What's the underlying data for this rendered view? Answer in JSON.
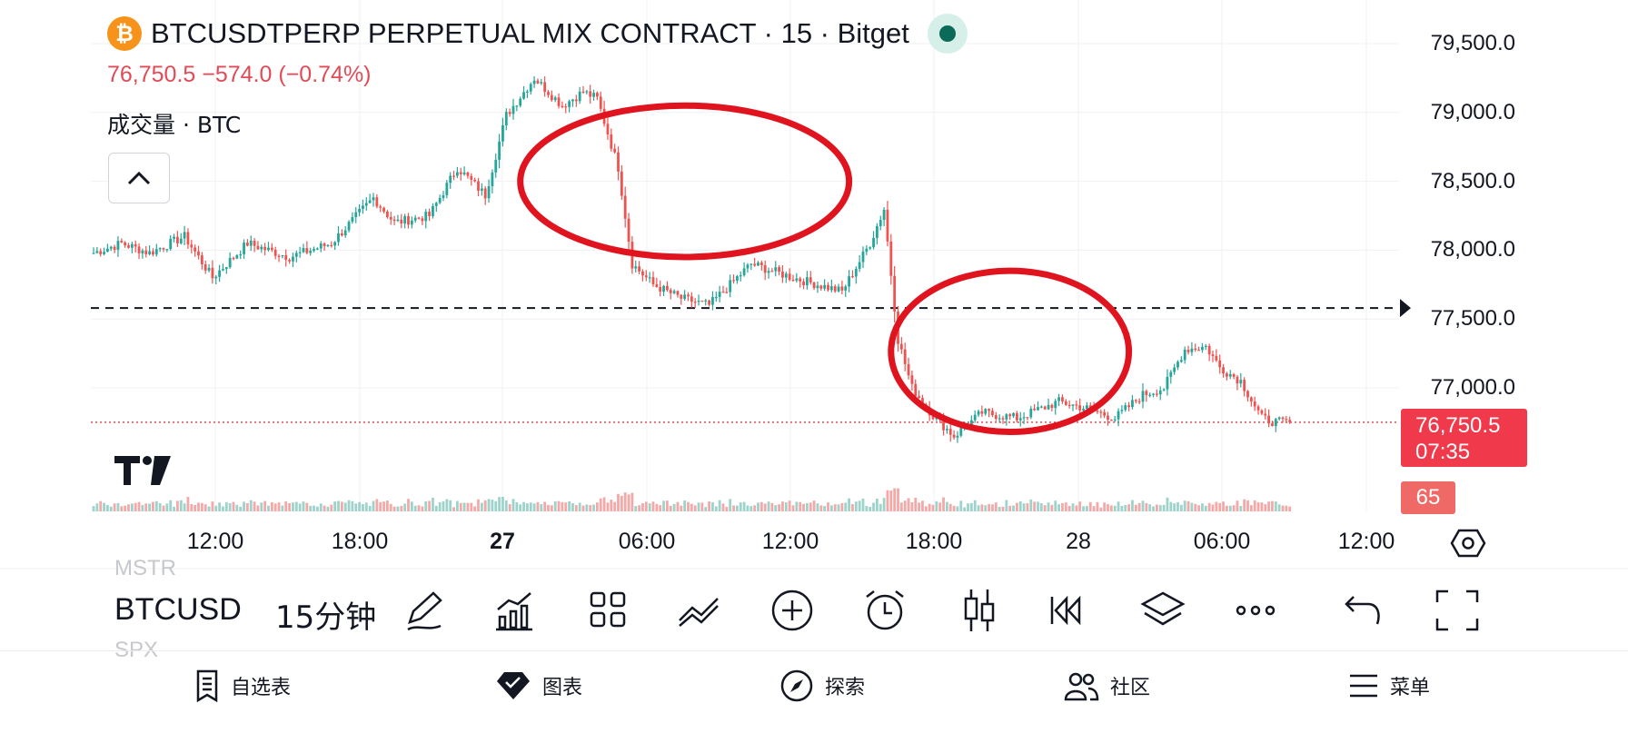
{
  "header": {
    "coin_icon": "bitcoin-icon",
    "coin_glyph": "₿",
    "title": "BTCUSDTPERP PERPETUAL MIX CONTRACT · 15 · Bitget",
    "price_change": "76,750.5  −574.0 (−0.74%)",
    "volume_label": "成交量 · BTC",
    "market_status_color": "#0b6b58"
  },
  "price_axis": {
    "ticks": [
      "79,500.0",
      "79,000.0",
      "78,500.0",
      "78,000.0",
      "77,500.0",
      "77,000.0"
    ],
    "current_price": "76,750.5",
    "countdown": "07:35",
    "volume_value": "65"
  },
  "time_axis": {
    "ticks": [
      "12:00",
      "18:00",
      "27",
      "06:00",
      "12:00",
      "18:00",
      "28",
      "06:00",
      "12:00"
    ],
    "bold": [
      "27"
    ]
  },
  "ghost_symbols": [
    "MSTR",
    "SPX"
  ],
  "toolbar": {
    "symbol": "BTCUSD",
    "timeframe": "15分钟",
    "icons": [
      "pen-icon",
      "indicators-icon",
      "layout-grid-icon",
      "compare-icon",
      "add-circle-icon",
      "alarm-icon",
      "candle-style-icon",
      "replay-icon",
      "layers-icon",
      "more-icon",
      "undo-icon",
      "fullscreen-icon"
    ]
  },
  "bottom_nav": [
    {
      "label": "自选表",
      "icon": "watchlist-icon"
    },
    {
      "label": "图表",
      "icon": "chart-icon"
    },
    {
      "label": "探索",
      "icon": "compass-icon"
    },
    {
      "label": "社区",
      "icon": "community-icon"
    },
    {
      "label": "菜单",
      "icon": "menu-icon"
    }
  ],
  "colors": {
    "up": "#26a69a",
    "down": "#ef5350",
    "up_volume": "#9ed3cb",
    "down_volume": "#f3a9a8",
    "annotation": "#e0141e",
    "price_tag": "#f0394a"
  },
  "chart_data": {
    "type": "candlestick",
    "symbol": "BTCUSDTPERP",
    "interval": "15",
    "y_axis": {
      "ticks": [
        79500,
        79000,
        78500,
        78000,
        77500,
        77000
      ]
    },
    "x_axis": {
      "ticks": [
        "12:00",
        "18:00",
        "27",
        "06:00",
        "12:00",
        "18:00",
        "28",
        "06:00",
        "12:00"
      ]
    },
    "reference_line": 77580,
    "current_price": 76750.5,
    "price_path": [
      [
        0,
        77980
      ],
      [
        8,
        78050
      ],
      [
        16,
        77980
      ],
      [
        26,
        78100
      ],
      [
        34,
        77800
      ],
      [
        44,
        78050
      ],
      [
        56,
        77950
      ],
      [
        68,
        78050
      ],
      [
        80,
        78380
      ],
      [
        86,
        78200
      ],
      [
        96,
        78250
      ],
      [
        104,
        78600
      ],
      [
        112,
        78400
      ],
      [
        118,
        78980
      ],
      [
        126,
        79250
      ],
      [
        134,
        79050
      ],
      [
        140,
        79150
      ],
      [
        144,
        79100
      ],
      [
        150,
        78600
      ],
      [
        154,
        77900
      ],
      [
        160,
        77750
      ],
      [
        168,
        77650
      ],
      [
        176,
        77600
      ],
      [
        188,
        77900
      ],
      [
        200,
        77800
      ],
      [
        214,
        77700
      ],
      [
        222,
        78050
      ],
      [
        226,
        78300
      ],
      [
        230,
        77350
      ],
      [
        234,
        77000
      ],
      [
        240,
        76800
      ],
      [
        246,
        76650
      ],
      [
        254,
        76820
      ],
      [
        264,
        76780
      ],
      [
        276,
        76900
      ],
      [
        284,
        76850
      ],
      [
        292,
        76780
      ],
      [
        300,
        76950
      ],
      [
        306,
        77000
      ],
      [
        312,
        77280
      ],
      [
        318,
        77300
      ],
      [
        322,
        77150
      ],
      [
        328,
        77050
      ],
      [
        334,
        76780
      ],
      [
        338,
        76750
      ],
      [
        342,
        76750.5
      ]
    ],
    "candles_total": 343,
    "annotations": [
      {
        "shape": "ellipse",
        "color": "#e0141e",
        "from_candle": 122,
        "to_candle": 216,
        "price_top": 79050,
        "price_bottom": 77950
      },
      {
        "shape": "ellipse",
        "color": "#e0141e",
        "from_candle": 228,
        "to_candle": 296,
        "price_top": 77850,
        "price_bottom": 76680
      }
    ]
  }
}
